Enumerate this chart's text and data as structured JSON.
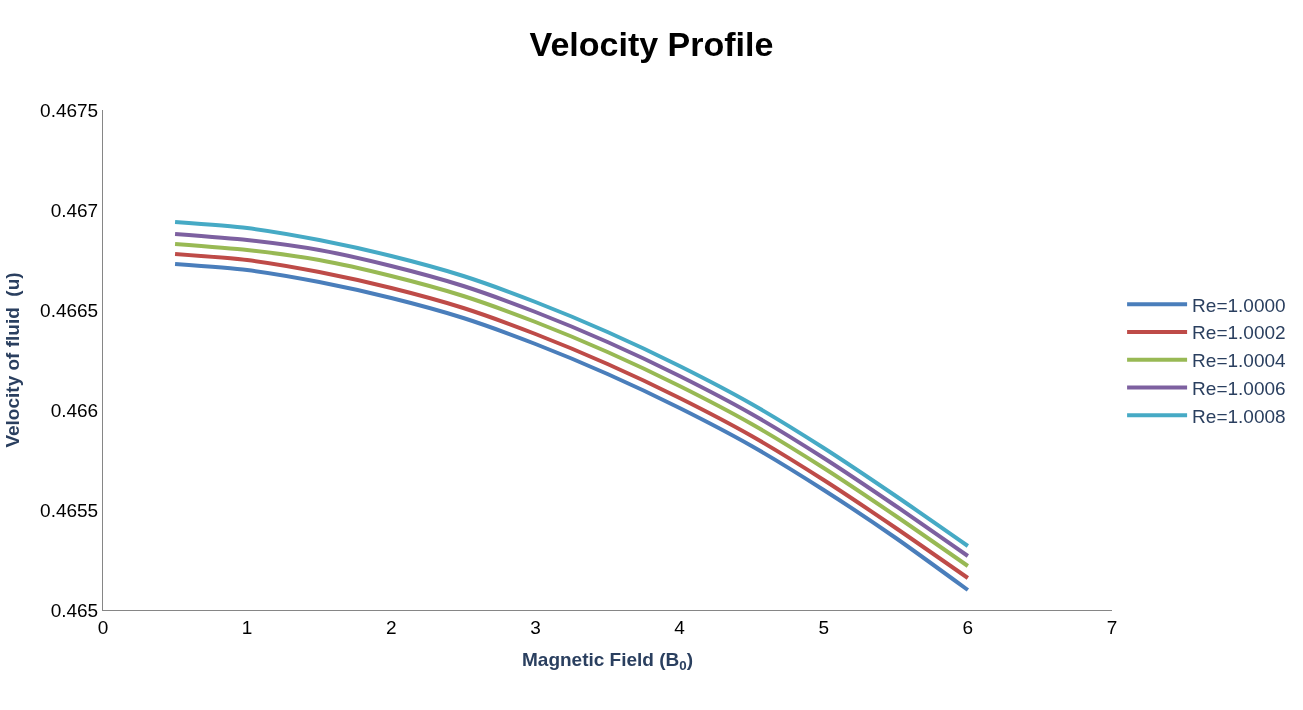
{
  "chart_data": {
    "type": "line",
    "title": "Velocity Profile",
    "xlabel": "Magnetic Field (B$_{0}$)",
    "ylabel": "Velocity of fluid  (u)",
    "x": [
      0.5,
      1,
      1.5,
      2,
      2.5,
      3,
      3.5,
      4,
      4.5,
      5,
      5.5,
      6
    ],
    "series": [
      {
        "name": "Re=1.0000",
        "color": "#4a7ebb",
        "values": [
          0.46673,
          0.4667,
          0.46664,
          0.46656,
          0.46646,
          0.46633,
          0.46618,
          0.46601,
          0.46582,
          0.4656,
          0.46536,
          0.4651
        ]
      },
      {
        "name": "Re=1.0002",
        "color": "#be4b48",
        "values": [
          0.46678,
          0.46675,
          0.46669,
          0.46661,
          0.46651,
          0.46638,
          0.46623,
          0.46606,
          0.46587,
          0.46565,
          0.46541,
          0.46516
        ]
      },
      {
        "name": "Re=1.0004",
        "color": "#98b954",
        "values": [
          0.46683,
          0.4668,
          0.46675,
          0.46667,
          0.46657,
          0.46644,
          0.46629,
          0.46612,
          0.46593,
          0.46571,
          0.46547,
          0.46522
        ]
      },
      {
        "name": "Re=1.0006",
        "color": "#7d60a0",
        "values": [
          0.46688,
          0.46685,
          0.4668,
          0.46672,
          0.46662,
          0.46649,
          0.46634,
          0.46617,
          0.46598,
          0.46576,
          0.46552,
          0.46527
        ]
      },
      {
        "name": "Re=1.0008",
        "color": "#46aac5",
        "values": [
          0.46694,
          0.46691,
          0.46685,
          0.46677,
          0.46667,
          0.46654,
          0.46639,
          0.46622,
          0.46603,
          0.46581,
          0.46557,
          0.46532
        ]
      }
    ],
    "xlim": [
      0,
      7
    ],
    "xticks": [
      0,
      1,
      2,
      3,
      4,
      5,
      6,
      7
    ],
    "ylim": [
      0.465,
      0.4675
    ],
    "yticks": [
      0.465,
      0.4655,
      0.466,
      0.4665,
      0.467,
      0.4675
    ],
    "grid": false,
    "legend": "right",
    "marker": "none",
    "line_style": "solid"
  }
}
